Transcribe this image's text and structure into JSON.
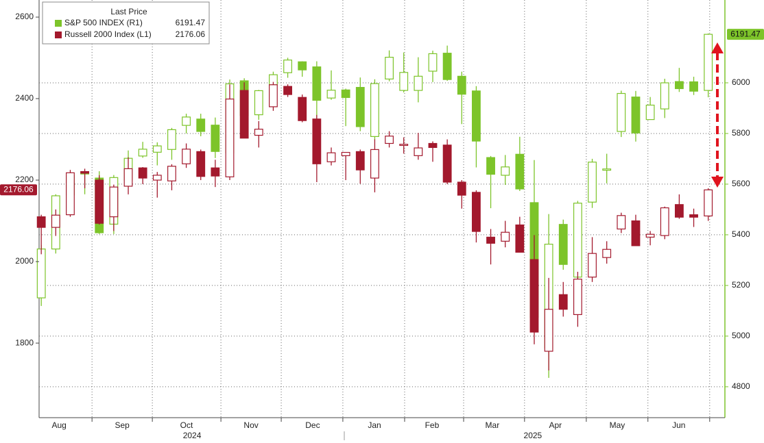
{
  "chart_data": {
    "type": "candlestick",
    "legend_title": "Last Price",
    "xlim": [
      -0.15,
      47.15
    ],
    "xticks": [
      {
        "value": 1.23,
        "label": "Aug"
      },
      {
        "value": 5.58,
        "label": "Sep"
      },
      {
        "value": 10.02,
        "label": "Oct"
      },
      {
        "value": 14.47,
        "label": "Nov"
      },
      {
        "value": 18.72,
        "label": "Dec"
      },
      {
        "value": 22.98,
        "label": "Jan"
      },
      {
        "value": 26.95,
        "label": "Feb"
      },
      {
        "value": 31.11,
        "label": "Mar"
      },
      {
        "value": 35.46,
        "label": "Apr"
      },
      {
        "value": 39.72,
        "label": "May"
      },
      {
        "value": 43.97,
        "label": "Jun"
      }
    ],
    "year_labels": [
      {
        "value": 10.4,
        "label": "2024"
      },
      {
        "value": 33.9,
        "label": "2025"
      }
    ],
    "xgrid": [
      3.5,
      7.66,
      12.39,
      16.55,
      20.8,
      25.06,
      29.13,
      33.33,
      37.59,
      41.84,
      46.1
    ],
    "ylim": [
      1617,
      2642
    ],
    "yticks": [
      1800,
      2000,
      2200,
      2400,
      2600
    ],
    "y2lim": [
      4678,
      6327
    ],
    "y2ticks": [
      4800,
      5000,
      5200,
      5400,
      5600,
      5800,
      6000
    ],
    "grid": true,
    "series": [
      {
        "name": "S&P 500 INDEX  (R1)",
        "color": "#7dc42a",
        "axis": "y2",
        "open": [
          5151,
          5344,
          5557,
          5640,
          5624,
          5442,
          5615,
          5711,
          5726,
          5737,
          5832,
          5857,
          5833,
          5723,
          6008,
          5874,
          5992,
          6040,
          6083,
          6063,
          5940,
          5972,
          5982,
          5788,
          6015,
          5970,
          5970,
          6046,
          6117,
          6026,
          5968,
          5705,
          5635,
          5718,
          5527,
          4953,
          5441,
          5233,
          5529,
          5655,
          5808,
          5944,
          5855,
          5897,
          6005,
          6004,
          5970
        ],
        "high": [
          5360,
          5560,
          5643,
          5651,
          5651,
          5636,
          5733,
          5767,
          5765,
          5822,
          5878,
          5878,
          5863,
          6013,
          6018,
          5972,
          6044,
          6099,
          6085,
          6085,
          6049,
          5977,
          6021,
          6014,
          6128,
          6120,
          6101,
          6127,
          6147,
          6044,
          5987,
          5711,
          5715,
          5787,
          5695,
          5482,
          5460,
          5534,
          5700,
          5720,
          5969,
          5968,
          5944,
          6016,
          6059,
          6024,
          6195
        ],
        "low": [
          5119,
          5326,
          5540,
          5560,
          5403,
          5403,
          5596,
          5704,
          5674,
          5696,
          5800,
          5789,
          5703,
          5697,
          5853,
          5854,
          5963,
          6020,
          6024,
          5832,
          5933,
          5829,
          5809,
          5774,
          6006,
          5962,
          5923,
          6003,
          6008,
          5837,
          5666,
          5505,
          5597,
          5573,
          5069,
          4835,
          5262,
          5102,
          5506,
          5603,
          5786,
          5768,
          5855,
          5861,
          5964,
          5952,
          5943
        ],
        "close": [
          5344,
          5554,
          5634,
          5648,
          5408,
          5626,
          5702,
          5738,
          5751,
          5815,
          5865,
          5808,
          5729,
          5996,
          5871,
          5969,
          6032,
          6090,
          6051,
          5931,
          5971,
          5942,
          5827,
          5997,
          6101,
          6041,
          6026,
          6115,
          6013,
          5955,
          5770,
          5639,
          5668,
          5581,
          5074,
          5363,
          5283,
          5525,
          5687,
          5660,
          5958,
          5802,
          5912,
          6000,
          5977,
          5967,
          6191.47
        ]
      },
      {
        "name": "Russell 2000 Index  (L1)",
        "color": "#a3192d",
        "axis": "y",
        "open": [
          2110,
          2084,
          2115,
          2221,
          2200,
          2110,
          2185,
          2230,
          2200,
          2198,
          2240,
          2270,
          2230,
          2208,
          2420,
          2310,
          2380,
          2430,
          2403,
          2350,
          2245,
          2260,
          2270,
          2205,
          2290,
          2285,
          2260,
          2290,
          2286,
          2195,
          2170,
          2060,
          2050,
          2090,
          2005,
          1780,
          1919,
          1870,
          1962,
          2010,
          2080,
          2100,
          2060,
          2064,
          2140,
          2115,
          2112
        ],
        "high": [
          2115,
          2128,
          2225,
          2228,
          2212,
          2189,
          2256,
          2232,
          2220,
          2239,
          2290,
          2275,
          2250,
          2435,
          2440,
          2345,
          2441,
          2435,
          2410,
          2360,
          2280,
          2262,
          2275,
          2300,
          2320,
          2305,
          2316,
          2295,
          2300,
          2200,
          2175,
          2080,
          2100,
          2110,
          2065,
          1960,
          1950,
          1975,
          2060,
          2050,
          2120,
          2115,
          2075,
          2135,
          2165,
          2130,
          2180
        ],
        "low": [
          2018,
          2063,
          2110,
          2180,
          2091,
          2075,
          2165,
          2190,
          2157,
          2175,
          2230,
          2200,
          2183,
          2200,
          2311,
          2280,
          2370,
          2404,
          2342,
          2195,
          2236,
          2200,
          2191,
          2170,
          2280,
          2265,
          2250,
          2245,
          2190,
          2130,
          2047,
          1993,
          2035,
          2023,
          1797,
          1733,
          1865,
          1840,
          1950,
          1995,
          2070,
          2040,
          2040,
          2055,
          2105,
          2085,
          2100
        ],
        "close": [
          2084,
          2114,
          2218,
          2217,
          2094,
          2183,
          2228,
          2205,
          2212,
          2234,
          2276,
          2209,
          2210,
          2399,
          2303,
          2325,
          2434,
          2410,
          2346,
          2240,
          2267,
          2268,
          2225,
          2275,
          2308,
          2288,
          2279,
          2280,
          2195,
          2163,
          2074,
          2045,
          2072,
          2023,
          1827,
          1883,
          1883,
          1957,
          2020,
          2030,
          2113,
          2039,
          2067,
          2132,
          2109,
          2109,
          2176.06
        ]
      }
    ]
  }
}
